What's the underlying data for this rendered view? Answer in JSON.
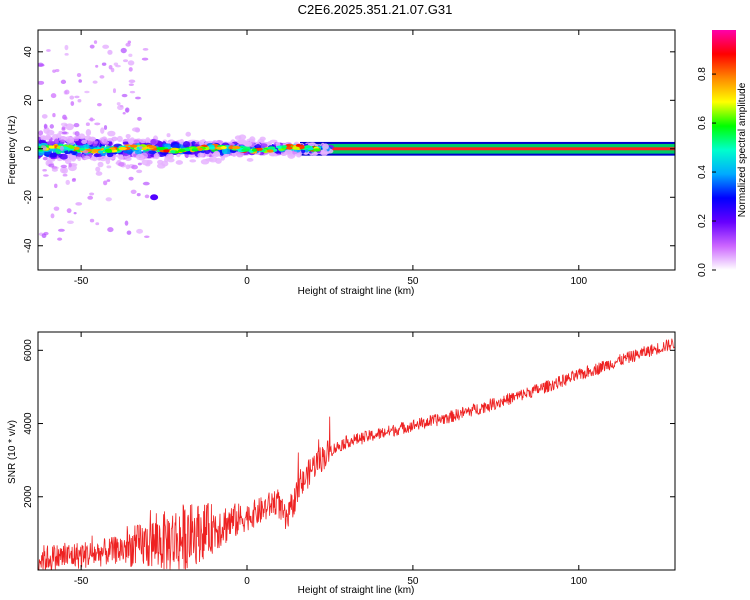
{
  "title": "C2E6.2025.351.21.07.G31",
  "chart_data": [
    {
      "type": "heatmap",
      "xlabel": "Height of straight line (km)",
      "ylabel": "Frequency (Hz)",
      "xlim": [
        -63,
        129
      ],
      "ylim": [
        -50,
        49
      ],
      "xticks": [
        -50,
        0,
        50,
        100
      ],
      "yticks": [
        -40,
        -20,
        0,
        20,
        40
      ],
      "colorbar": {
        "label": "Normalized spectral amplitude",
        "range": [
          0,
          0.98
        ],
        "ticks": [
          "0.0",
          "0.2",
          "0.4",
          "0.6",
          "0.8"
        ],
        "colors": [
          "#ffffff",
          "#cc66ff",
          "#6600ff",
          "#0000ff",
          "#00aaff",
          "#00ffcc",
          "#00ff00",
          "#ffff00",
          "#ff8800",
          "#ff0000",
          "#ff00aa"
        ]
      },
      "ridge": {
        "description": "strong tone near 0 Hz",
        "x_start": -63,
        "x_end": 129,
        "center_hz": 0,
        "clean_from_km": 22,
        "band_hz": [
          -2,
          2
        ]
      }
    },
    {
      "type": "line",
      "xlabel": "Height of straight line (km)",
      "ylabel": "SNR (10 * v/v)",
      "xlim": [
        -63,
        129
      ],
      "ylim": [
        0,
        6500
      ],
      "xticks": [
        -50,
        0,
        50,
        100
      ],
      "yticks": [
        2000,
        4000,
        6000
      ],
      "color": "#ee2222",
      "trend": {
        "x": [
          -63,
          -45,
          -30,
          -20,
          -10,
          0,
          5,
          9,
          12,
          15,
          20,
          25,
          30,
          40,
          50,
          60,
          70,
          80,
          90,
          100,
          110,
          120,
          129
        ],
        "y": [
          300,
          450,
          700,
          850,
          1150,
          1450,
          1650,
          1900,
          1300,
          2100,
          2850,
          3250,
          3500,
          3720,
          3950,
          4150,
          4420,
          4700,
          5000,
          5320,
          5650,
          5950,
          6200
        ]
      }
    }
  ]
}
